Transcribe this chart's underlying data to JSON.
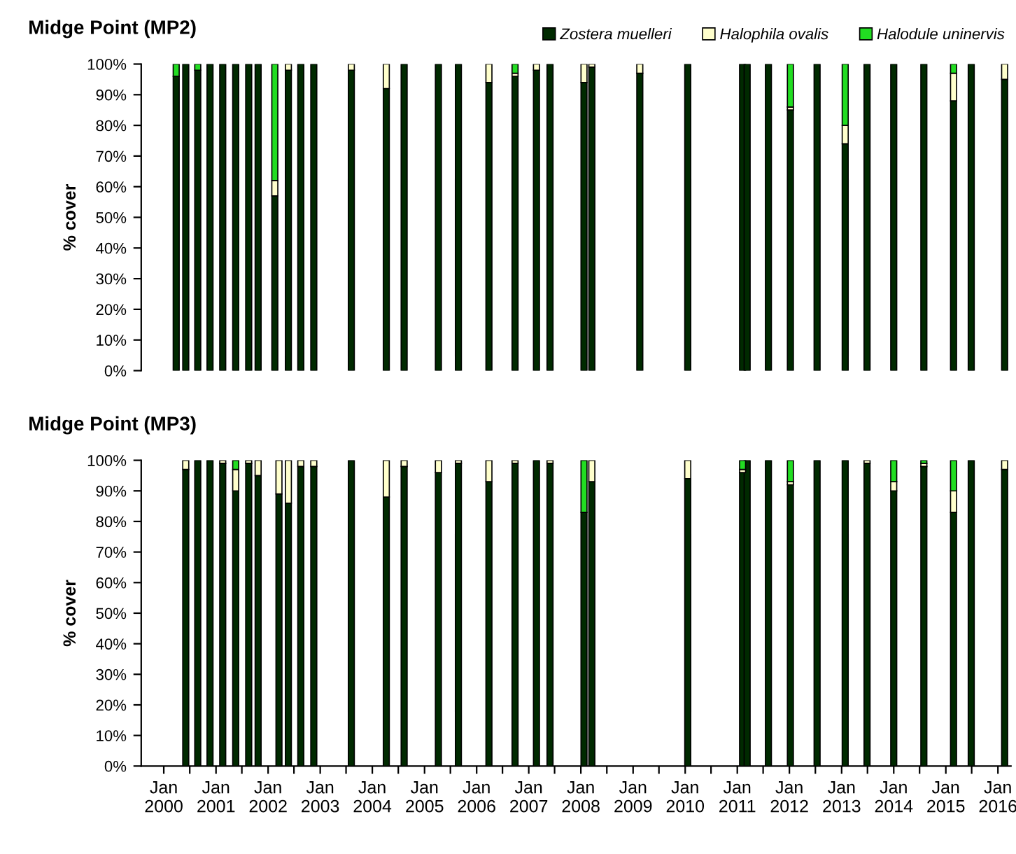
{
  "chart_data": [
    {
      "type": "bar",
      "stacked": true,
      "title": "Midge Point (MP2)",
      "ylabel": "% cover",
      "legend": "top right",
      "tick_labels": "y",
      "x": [
        "2000-03-28",
        "2000-06-03",
        "2000-08-26",
        "2000-11-20",
        "2001-02-17",
        "2001-05-19",
        "2001-08-18",
        "2001-10-23",
        "2002-02-17",
        "2002-05-23",
        "2002-08-18",
        "2002-11-17",
        "2003-08-07",
        "2004-04-08",
        "2004-08-11",
        "2005-04-08",
        "2005-08-26",
        "2006-03-28",
        "2006-09-27",
        "2007-02-24",
        "2007-05-30",
        "2008-01-23",
        "2008-03-18",
        "2009-02-17",
        "2010-01-19",
        "2011-02-07",
        "2011-03-11",
        "2011-08-07",
        "2012-01-08",
        "2012-07-13",
        "2013-01-26",
        "2013-06-28",
        "2014-01-01",
        "2014-07-31",
        "2015-02-24",
        "2015-06-28",
        "2016-02-17"
      ],
      "series": [
        {
          "name": "Zostera muelleri",
          "color": "#002a00",
          "values": [
            96,
            100,
            98,
            100,
            100,
            100,
            100,
            100,
            57,
            98,
            100,
            100,
            98,
            92,
            100,
            100,
            100,
            94,
            96,
            98,
            100,
            94,
            99,
            97,
            100,
            100,
            100,
            100,
            85,
            100,
            74,
            100,
            100,
            100,
            88,
            100,
            95
          ]
        },
        {
          "name": "Halophila ovalis",
          "color": "#ffffcc",
          "values": [
            null,
            null,
            null,
            null,
            null,
            null,
            null,
            null,
            5,
            2,
            null,
            null,
            2,
            8,
            null,
            null,
            null,
            6,
            1,
            2,
            null,
            6,
            1,
            3,
            null,
            null,
            null,
            null,
            1,
            null,
            6,
            null,
            null,
            null,
            9,
            null,
            5
          ]
        },
        {
          "name": "Halodule uninervis",
          "color": "#22dd22",
          "values": [
            4,
            null,
            2,
            null,
            null,
            null,
            null,
            null,
            38,
            null,
            null,
            null,
            null,
            null,
            null,
            null,
            null,
            null,
            3,
            null,
            null,
            null,
            null,
            null,
            null,
            null,
            null,
            null,
            14,
            null,
            20,
            null,
            null,
            null,
            3,
            null,
            null
          ]
        }
      ],
      "xlim": [
        "1999-07-27",
        "2016-04-01"
      ],
      "ylim": [
        0,
        100
      ],
      "yticks": [
        {
          "value": 0,
          "label": "0%"
        },
        {
          "value": 10,
          "label": "10%"
        },
        {
          "value": 20,
          "label": "20%"
        },
        {
          "value": 30,
          "label": "30%"
        },
        {
          "value": 40,
          "label": "40%"
        },
        {
          "value": 50,
          "label": "50%"
        },
        {
          "value": 60,
          "label": "60%"
        },
        {
          "value": 70,
          "label": "70%"
        },
        {
          "value": 80,
          "label": "80%"
        },
        {
          "value": 90,
          "label": "90%"
        },
        {
          "value": 100,
          "label": "100%"
        }
      ]
    },
    {
      "type": "bar",
      "stacked": true,
      "title": "Midge Point (MP3)",
      "ylabel": "% cover",
      "x": [
        "2000-06-03",
        "2000-08-26",
        "2000-11-20",
        "2001-02-17",
        "2001-05-19",
        "2001-08-18",
        "2001-10-23",
        "2002-03-18",
        "2002-05-23",
        "2002-08-18",
        "2002-11-17",
        "2003-08-07",
        "2004-04-08",
        "2004-08-11",
        "2005-04-08",
        "2005-08-26",
        "2006-03-28",
        "2006-09-27",
        "2007-02-24",
        "2007-05-30",
        "2008-01-23",
        "2008-03-18",
        "2010-01-19",
        "2011-02-07",
        "2011-03-11",
        "2011-08-07",
        "2012-01-08",
        "2012-07-13",
        "2013-01-26",
        "2013-06-28",
        "2014-01-01",
        "2014-07-31",
        "2015-02-24",
        "2015-06-28",
        "2016-02-17"
      ],
      "series": [
        {
          "color": "#002a00",
          "values": [
            97,
            100,
            100,
            99,
            90,
            99,
            95,
            89,
            86,
            98,
            98,
            100,
            88,
            98,
            96,
            99,
            93,
            99,
            100,
            99,
            83,
            93,
            94,
            96,
            100,
            100,
            92,
            100,
            100,
            99,
            90,
            98,
            83,
            100,
            97
          ]
        },
        {
          "color": "#ffffcc",
          "values": [
            3,
            null,
            null,
            1,
            7,
            1,
            5,
            11,
            14,
            2,
            2,
            null,
            12,
            2,
            4,
            1,
            7,
            1,
            null,
            1,
            null,
            7,
            6,
            1,
            null,
            null,
            1,
            null,
            null,
            1,
            3,
            1,
            7,
            null,
            3
          ]
        },
        {
          "color": "#22dd22",
          "values": [
            null,
            null,
            null,
            null,
            3,
            null,
            null,
            null,
            null,
            null,
            null,
            null,
            null,
            null,
            null,
            null,
            null,
            null,
            null,
            null,
            17,
            null,
            null,
            3,
            null,
            null,
            7,
            null,
            null,
            null,
            7,
            1,
            10,
            null,
            null
          ]
        }
      ],
      "xlim": [
        "1999-07-27",
        "2016-04-01"
      ],
      "xticks": [
        {
          "value": "2000-01-01",
          "label": "Jan\n2000"
        },
        {
          "value": "2000-07-01",
          "label": null
        },
        {
          "value": "2001-01-01",
          "label": "Jan\n2001"
        },
        {
          "value": "2001-07-01",
          "label": null
        },
        {
          "value": "2002-01-01",
          "label": "Jan\n2002"
        },
        {
          "value": "2002-07-01",
          "label": null
        },
        {
          "value": "2003-01-01",
          "label": "Jan\n2003"
        },
        {
          "value": "2003-07-01",
          "label": null
        },
        {
          "value": "2004-01-01",
          "label": "Jan\n2004"
        },
        {
          "value": "2004-07-01",
          "label": null
        },
        {
          "value": "2005-01-01",
          "label": "Jan\n2005"
        },
        {
          "value": "2005-07-01",
          "label": null
        },
        {
          "value": "2006-01-01",
          "label": "Jan\n2006"
        },
        {
          "value": "2006-07-01",
          "label": null
        },
        {
          "value": "2007-01-01",
          "label": "Jan\n2007"
        },
        {
          "value": "2007-07-01",
          "label": null
        },
        {
          "value": "2008-01-01",
          "label": "Jan\n2008"
        },
        {
          "value": "2008-07-01",
          "label": null
        },
        {
          "value": "2009-01-01",
          "label": "Jan\n2009"
        },
        {
          "value": "2009-07-01",
          "label": null
        },
        {
          "value": "2010-01-01",
          "label": "Jan\n2010"
        },
        {
          "value": "2010-07-01",
          "label": null
        },
        {
          "value": "2011-01-01",
          "label": "Jan\n2011"
        },
        {
          "value": "2011-07-01",
          "label": null
        },
        {
          "value": "2012-01-01",
          "label": "Jan\n2012"
        },
        {
          "value": "2012-07-01",
          "label": null
        },
        {
          "value": "2013-01-01",
          "label": "Jan\n2013"
        },
        {
          "value": "2013-07-01",
          "label": null
        },
        {
          "value": "2014-01-01",
          "label": "Jan\n2014"
        },
        {
          "value": "2014-07-01",
          "label": null
        },
        {
          "value": "2015-01-01",
          "label": "Jan\n2015"
        },
        {
          "value": "2015-07-01",
          "label": null
        },
        {
          "value": "2016-01-01",
          "label": "Jan\n2016"
        }
      ],
      "ylim": [
        0,
        100
      ],
      "yticks": [
        {
          "value": 0,
          "label": "0%"
        },
        {
          "value": 10,
          "label": "10%"
        },
        {
          "value": 20,
          "label": "20%"
        },
        {
          "value": 30,
          "label": "30%"
        },
        {
          "value": 40,
          "label": "40%"
        },
        {
          "value": 50,
          "label": "50%"
        },
        {
          "value": 60,
          "label": "60%"
        },
        {
          "value": 70,
          "label": "70%"
        },
        {
          "value": 80,
          "label": "80%"
        },
        {
          "value": 90,
          "label": "90%"
        },
        {
          "value": 100,
          "label": "100%"
        }
      ]
    }
  ]
}
